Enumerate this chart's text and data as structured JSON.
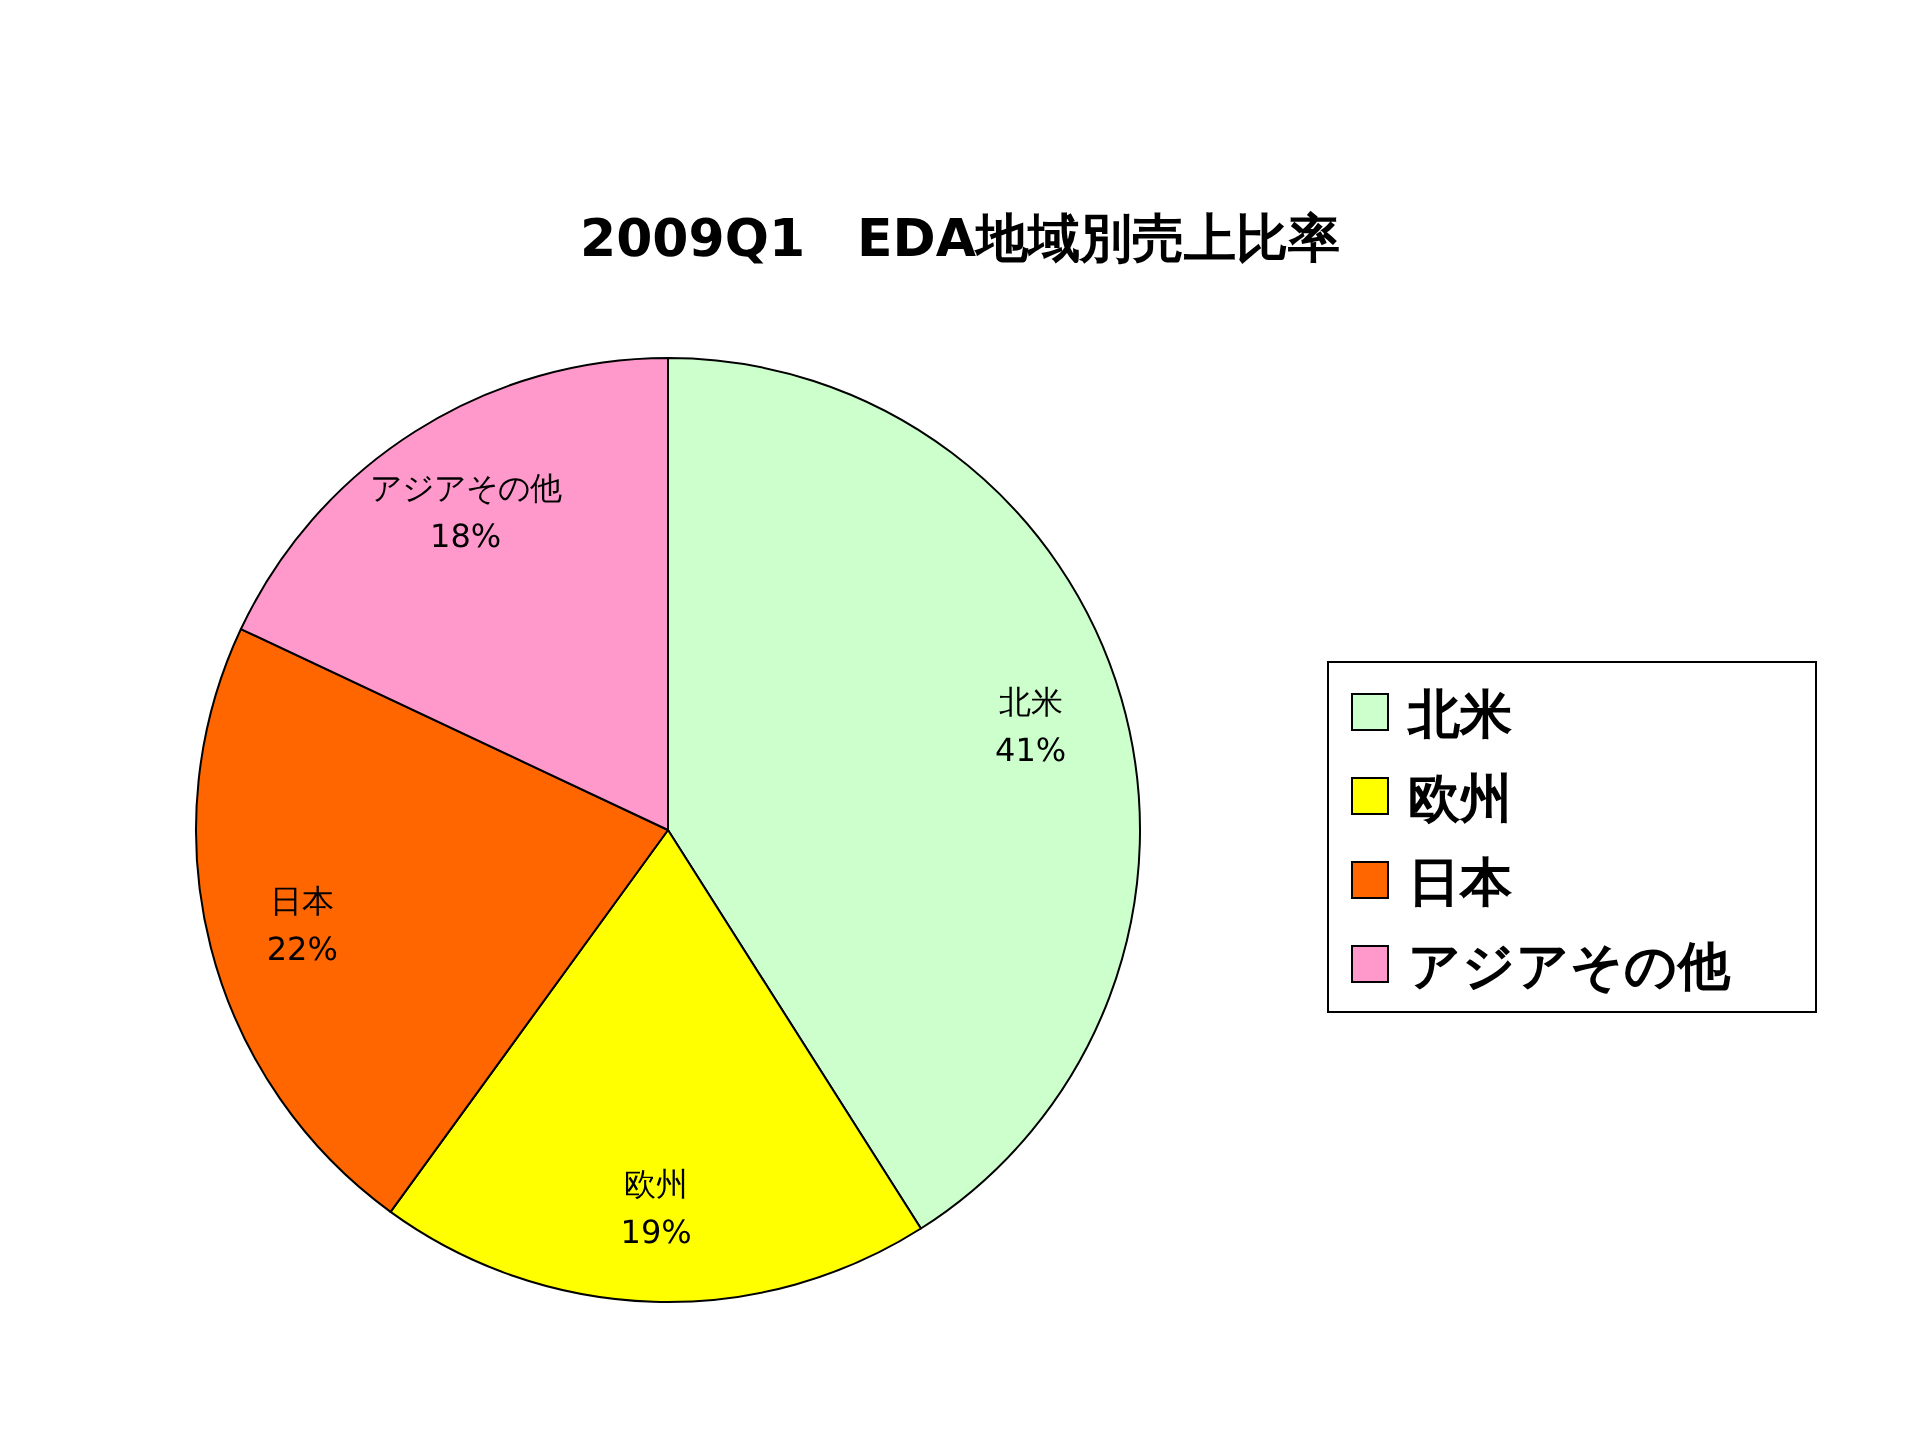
{
  "chart_data": {
    "type": "pie",
    "title": "2009Q1　EDA地域別売上比率",
    "categories": [
      "北米",
      "欧州",
      "日本",
      "アジアその他"
    ],
    "values": [
      41,
      19,
      22,
      18
    ],
    "colors": [
      "#ccffcc",
      "#ffff00",
      "#ff6600",
      "#ff99cc"
    ],
    "value_labels": [
      "41%",
      "19%",
      "22%",
      "18%"
    ],
    "legend": "right"
  }
}
